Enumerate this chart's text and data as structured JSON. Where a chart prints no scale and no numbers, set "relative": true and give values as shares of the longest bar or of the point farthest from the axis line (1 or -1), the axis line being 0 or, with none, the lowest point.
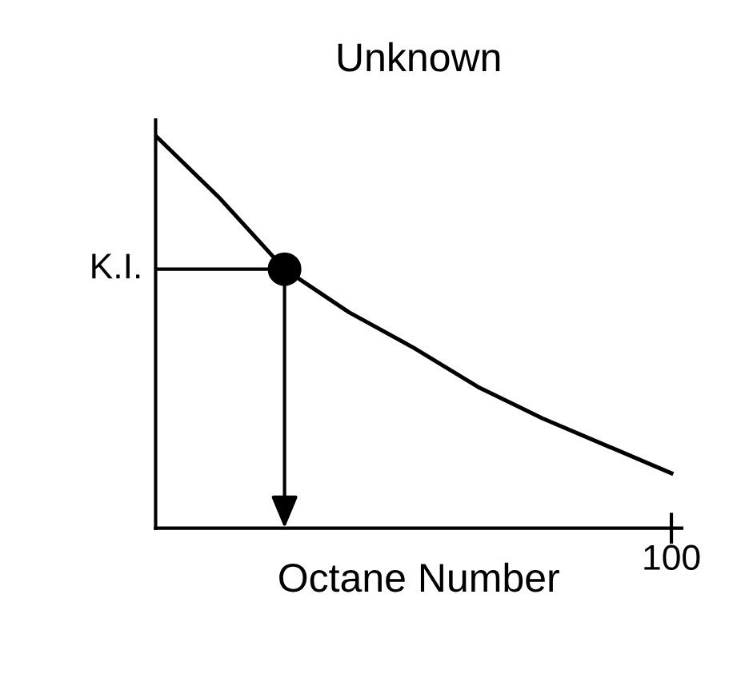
{
  "chart_data": {
    "type": "line",
    "title": "Unknown",
    "xlabel": "Octane Number",
    "relative": true,
    "categories": [
      null,
      null,
      null,
      null,
      null,
      null,
      null,
      null,
      null
    ],
    "series": [
      {
        "color": "#000000",
        "values": [
          1.0,
          0.84,
          0.66,
          0.55,
          0.46,
          0.36,
          0.28,
          0.21,
          0.14
        ]
      }
    ],
    "ref_lines": [
      {
        "axis": "y",
        "value": 0.66,
        "label": "K.I.",
        "color": "#000000"
      }
    ],
    "annotations": [
      "100"
    ]
  }
}
